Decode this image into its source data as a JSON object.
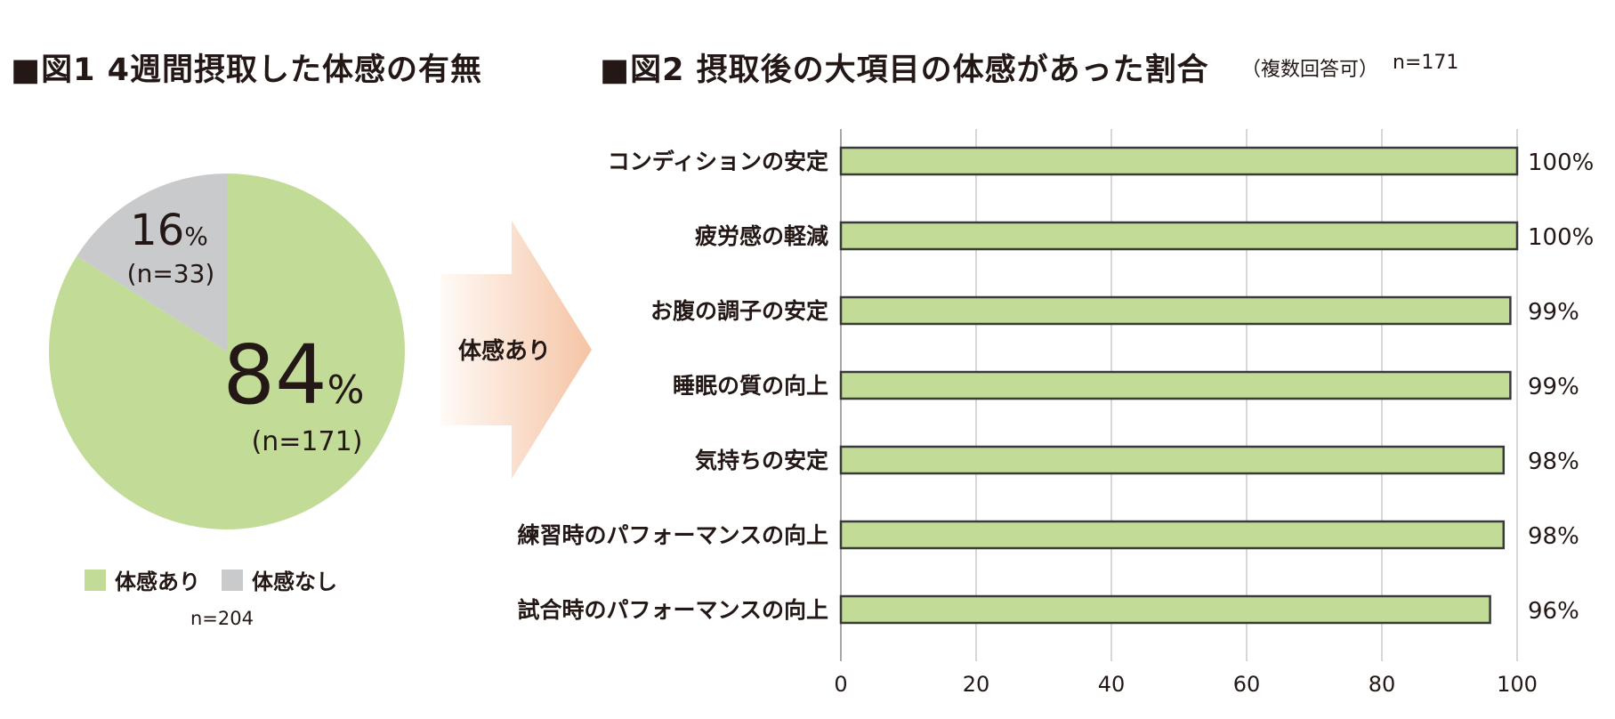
{
  "figure1": {
    "title": "■図1  4週間摂取した体感の有無",
    "n_label": "n=204",
    "big_pct": {
      "value": "84",
      "unit": "%",
      "count": "(n=171)"
    },
    "small_pct": {
      "value": "16",
      "unit": "%",
      "count": "(n=33)"
    },
    "legend": [
      {
        "label": "体感あり",
        "color": "#c2dc98"
      },
      {
        "label": "体感なし",
        "color": "#c9cacc"
      }
    ]
  },
  "arrow": {
    "label": "体感あり"
  },
  "figure2": {
    "title": "■図2  摂取後の大項目の体感があった割合",
    "subtitle": "（複数回答可）",
    "n_label": "n=171"
  },
  "colors": {
    "green": "#c2dc98",
    "gray": "#c9cacc",
    "bar_border": "#3a3a3a",
    "arrow_start": "#fde9dc",
    "arrow_end": "#f5c4a5"
  },
  "chart_data": [
    {
      "type": "pie",
      "categories": [
        "体感あり",
        "体感なし"
      ],
      "values": [
        84,
        16
      ],
      "counts": [
        171,
        33
      ],
      "n": 204
    },
    {
      "type": "bar",
      "orientation": "horizontal",
      "categories": [
        "コンディションの安定",
        "疲労感の軽減",
        "お腹の調子の安定",
        "睡眠の質の向上",
        "気持ちの安定",
        "練習時のパフォーマンスの向上",
        "試合時のパフォーマンスの向上"
      ],
      "values": [
        100,
        100,
        99,
        99,
        98,
        98,
        96
      ],
      "value_labels": [
        "100%",
        "100%",
        "99%",
        "99%",
        "98%",
        "98%",
        "96%"
      ],
      "xlim": [
        0,
        100
      ],
      "xticks": [
        "0",
        "20",
        "40",
        "60",
        "80",
        "100"
      ],
      "grid": true
    }
  ]
}
